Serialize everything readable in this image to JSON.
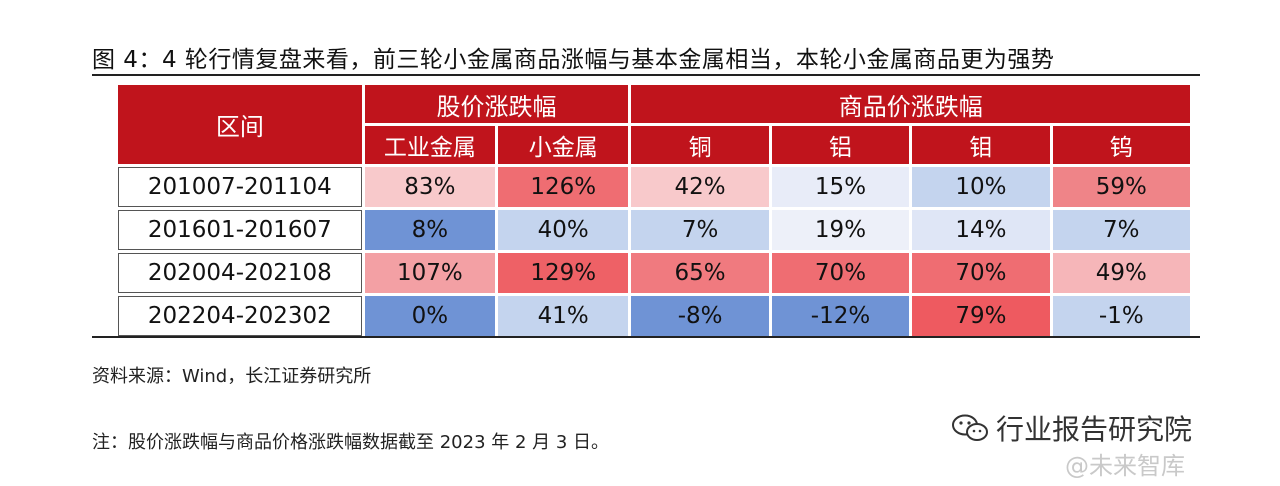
{
  "title": "图 4：4 轮行情复盘来看，前三轮小金属商品涨幅与基本金属相当，本轮小金属商品更为强势",
  "table": {
    "col_range": "区间",
    "group_stock": "股价涨跌幅",
    "group_commodity": "商品价涨跌幅",
    "sub_headers": [
      "工业金属",
      "小金属",
      "铜",
      "铝",
      "钼",
      "钨"
    ],
    "rows": [
      {
        "range": "201007-201104",
        "cells": [
          {
            "v": "83%",
            "c": "#f8c9cb"
          },
          {
            "v": "126%",
            "c": "#ef6d72"
          },
          {
            "v": "42%",
            "c": "#f8c9cb"
          },
          {
            "v": "15%",
            "c": "#e8ecf8"
          },
          {
            "v": "10%",
            "c": "#c4d4ee"
          },
          {
            "v": "59%",
            "c": "#ef8488"
          }
        ]
      },
      {
        "range": "201601-201607",
        "cells": [
          {
            "v": "8%",
            "c": "#6f93d5"
          },
          {
            "v": "40%",
            "c": "#c4d4ee"
          },
          {
            "v": "7%",
            "c": "#c4d4ee"
          },
          {
            "v": "19%",
            "c": "#edf0f9"
          },
          {
            "v": "14%",
            "c": "#dfe6f6"
          },
          {
            "v": "7%",
            "c": "#c4d4ee"
          }
        ]
      },
      {
        "range": "202004-202108",
        "cells": [
          {
            "v": "107%",
            "c": "#f3a0a4"
          },
          {
            "v": "129%",
            "c": "#ee6166"
          },
          {
            "v": "65%",
            "c": "#f07a7f"
          },
          {
            "v": "70%",
            "c": "#ef6d72"
          },
          {
            "v": "70%",
            "c": "#ef6d72"
          },
          {
            "v": "49%",
            "c": "#f6b6b9"
          }
        ]
      },
      {
        "range": "202204-202302",
        "cells": [
          {
            "v": "0%",
            "c": "#6f93d5"
          },
          {
            "v": "41%",
            "c": "#c4d4ee"
          },
          {
            "v": "-8%",
            "c": "#6f93d5"
          },
          {
            "v": "-12%",
            "c": "#6f93d5"
          },
          {
            "v": "79%",
            "c": "#ee5a60"
          },
          {
            "v": "-1%",
            "c": "#c4d4ee"
          }
        ]
      }
    ]
  },
  "source": "资料来源：Wind，长江证券研究所",
  "note": "注：股价涨跌幅与商品价格涨跌幅数据截至 2023 年 2 月 3 日。",
  "watermark": {
    "primary": "行业报告研究院",
    "secondary": "@未来智库",
    "icon": "wechat-icon"
  },
  "colors": {
    "header_red": "#c0141c"
  }
}
